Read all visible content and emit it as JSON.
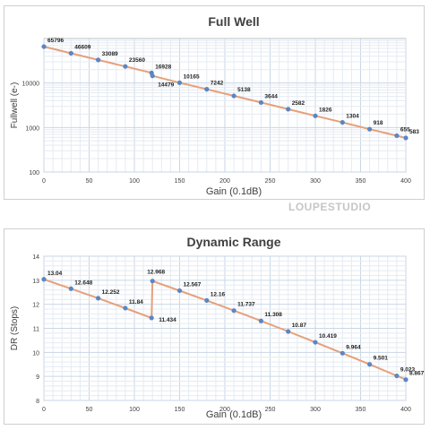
{
  "watermark": "LOUPESTUDIO",
  "chart_data": [
    {
      "type": "line",
      "title": "Full Well",
      "xlabel": "Gain (0.1dB)",
      "ylabel": "Fullwell (e-)",
      "yscale": "log",
      "xlim": [
        0,
        400
      ],
      "ylim": [
        100,
        100000
      ],
      "x_ticks": [
        0,
        50,
        100,
        150,
        200,
        250,
        300,
        350,
        400
      ],
      "y_ticks": [
        100,
        1000,
        10000
      ],
      "y_tick_labels": [
        "100",
        "1000",
        "10000"
      ],
      "grid": true,
      "legend": "none",
      "line_color": "#e6a07a",
      "marker_color": "#5b86c4",
      "points": [
        {
          "x": 0,
          "y": 65796,
          "label": "65796"
        },
        {
          "x": 30,
          "y": 46609,
          "label": "46609"
        },
        {
          "x": 60,
          "y": 33089,
          "label": "33089"
        },
        {
          "x": 90,
          "y": 23560,
          "label": "23560"
        },
        {
          "x": 119,
          "y": 16928,
          "label": "16928"
        },
        {
          "x": 120,
          "y": 14479,
          "label": "14479"
        },
        {
          "x": 150,
          "y": 10165,
          "label": "10165"
        },
        {
          "x": 180,
          "y": 7242,
          "label": "7242"
        },
        {
          "x": 210,
          "y": 5138,
          "label": "5138"
        },
        {
          "x": 240,
          "y": 3644,
          "label": "3644"
        },
        {
          "x": 270,
          "y": 2582,
          "label": "2582"
        },
        {
          "x": 300,
          "y": 1826,
          "label": "1826"
        },
        {
          "x": 330,
          "y": 1304,
          "label": "1304"
        },
        {
          "x": 360,
          "y": 918,
          "label": "918"
        },
        {
          "x": 390,
          "y": 655,
          "label": "655"
        },
        {
          "x": 400,
          "y": 583,
          "label": "583"
        }
      ]
    },
    {
      "type": "line",
      "title": "Dynamic Range",
      "xlabel": "Gain (0.1dB)",
      "ylabel": "DR (Stops)",
      "yscale": "linear",
      "xlim": [
        0,
        400
      ],
      "ylim": [
        8,
        14
      ],
      "x_ticks": [
        0,
        50,
        100,
        150,
        200,
        250,
        300,
        350,
        400
      ],
      "y_ticks": [
        8,
        9,
        10,
        11,
        12,
        13,
        14
      ],
      "y_tick_labels": [
        "8",
        "9",
        "10",
        "11",
        "12",
        "13",
        "14"
      ],
      "grid": true,
      "legend": "none",
      "line_color": "#e6a07a",
      "marker_color": "#5b86c4",
      "points": [
        {
          "x": 0,
          "y": 13.04,
          "label": "13.04"
        },
        {
          "x": 30,
          "y": 12.648,
          "label": "12.648"
        },
        {
          "x": 60,
          "y": 12.252,
          "label": "12.252"
        },
        {
          "x": 90,
          "y": 11.84,
          "label": "11.84"
        },
        {
          "x": 119,
          "y": 11.434,
          "label": "11.434"
        },
        {
          "x": 120,
          "y": 12.968,
          "label": "12.968"
        },
        {
          "x": 150,
          "y": 12.567,
          "label": "12.567"
        },
        {
          "x": 180,
          "y": 12.16,
          "label": "12.16"
        },
        {
          "x": 210,
          "y": 11.737,
          "label": "11.737"
        },
        {
          "x": 240,
          "y": 11.308,
          "label": "11.308"
        },
        {
          "x": 270,
          "y": 10.87,
          "label": "10.87"
        },
        {
          "x": 300,
          "y": 10.419,
          "label": "10.419"
        },
        {
          "x": 330,
          "y": 9.964,
          "label": "9.964"
        },
        {
          "x": 360,
          "y": 9.501,
          "label": "9.501"
        },
        {
          "x": 390,
          "y": 9.023,
          "label": "9.023"
        },
        {
          "x": 400,
          "y": 8.867,
          "label": "8.867"
        }
      ]
    }
  ]
}
